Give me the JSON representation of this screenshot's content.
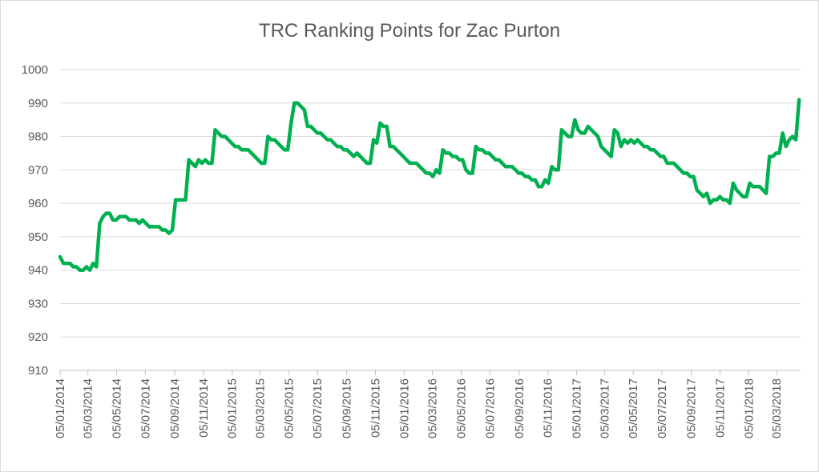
{
  "chart_data": {
    "type": "line",
    "title": "TRC Ranking Points for Zac Purton",
    "xlabel": "",
    "ylabel": "",
    "ylim": [
      910,
      1000
    ],
    "y_ticks": [
      910,
      920,
      930,
      940,
      950,
      960,
      970,
      980,
      990,
      1000
    ],
    "x_tick_labels": [
      "05/01/2014",
      "05/03/2014",
      "05/05/2014",
      "05/07/2014",
      "05/09/2014",
      "05/11/2014",
      "05/01/2015",
      "05/03/2015",
      "05/05/2015",
      "05/07/2015",
      "05/09/2015",
      "05/11/2015",
      "05/01/2016",
      "05/03/2016",
      "05/05/2016",
      "05/07/2016",
      "05/09/2016",
      "05/11/2016",
      "05/01/2017",
      "05/03/2017",
      "05/05/2017",
      "05/07/2017",
      "05/09/2017",
      "05/11/2017",
      "05/01/2018",
      "05/03/2018"
    ],
    "grid": true,
    "legend": "none",
    "line_color": "#00b050",
    "series": [
      {
        "values": [
          [
            "2014-01-05",
            944
          ],
          [
            "2014-01-12",
            942
          ],
          [
            "2014-01-19",
            942
          ],
          [
            "2014-01-26",
            942
          ],
          [
            "2014-02-02",
            941
          ],
          [
            "2014-02-09",
            941
          ],
          [
            "2014-02-16",
            940
          ],
          [
            "2014-02-23",
            940
          ],
          [
            "2014-03-02",
            941
          ],
          [
            "2014-03-09",
            940
          ],
          [
            "2014-03-16",
            942
          ],
          [
            "2014-03-23",
            941
          ],
          [
            "2014-03-30",
            954
          ],
          [
            "2014-04-06",
            956
          ],
          [
            "2014-04-13",
            957
          ],
          [
            "2014-04-20",
            957
          ],
          [
            "2014-04-27",
            955
          ],
          [
            "2014-05-04",
            955
          ],
          [
            "2014-05-11",
            956
          ],
          [
            "2014-05-18",
            956
          ],
          [
            "2014-05-25",
            956
          ],
          [
            "2014-06-01",
            955
          ],
          [
            "2014-06-08",
            955
          ],
          [
            "2014-06-15",
            955
          ],
          [
            "2014-06-22",
            954
          ],
          [
            "2014-06-29",
            955
          ],
          [
            "2014-07-06",
            954
          ],
          [
            "2014-07-13",
            953
          ],
          [
            "2014-07-20",
            953
          ],
          [
            "2014-07-27",
            953
          ],
          [
            "2014-08-03",
            953
          ],
          [
            "2014-08-10",
            952
          ],
          [
            "2014-08-17",
            952
          ],
          [
            "2014-08-24",
            951
          ],
          [
            "2014-08-31",
            952
          ],
          [
            "2014-09-07",
            961
          ],
          [
            "2014-09-14",
            961
          ],
          [
            "2014-09-21",
            961
          ],
          [
            "2014-09-28",
            961
          ],
          [
            "2014-10-05",
            973
          ],
          [
            "2014-10-12",
            972
          ],
          [
            "2014-10-19",
            971
          ],
          [
            "2014-10-26",
            973
          ],
          [
            "2014-11-02",
            972
          ],
          [
            "2014-11-09",
            973
          ],
          [
            "2014-11-16",
            972
          ],
          [
            "2014-11-23",
            972
          ],
          [
            "2014-11-30",
            982
          ],
          [
            "2014-12-07",
            981
          ],
          [
            "2014-12-14",
            980
          ],
          [
            "2014-12-21",
            980
          ],
          [
            "2014-12-28",
            979
          ],
          [
            "2015-01-04",
            978
          ],
          [
            "2015-01-11",
            977
          ],
          [
            "2015-01-18",
            977
          ],
          [
            "2015-01-25",
            976
          ],
          [
            "2015-02-01",
            976
          ],
          [
            "2015-02-08",
            976
          ],
          [
            "2015-02-15",
            975
          ],
          [
            "2015-02-22",
            974
          ],
          [
            "2015-03-01",
            973
          ],
          [
            "2015-03-08",
            972
          ],
          [
            "2015-03-15",
            972
          ],
          [
            "2015-03-22",
            980
          ],
          [
            "2015-03-29",
            979
          ],
          [
            "2015-04-05",
            979
          ],
          [
            "2015-04-12",
            978
          ],
          [
            "2015-04-19",
            977
          ],
          [
            "2015-04-26",
            976
          ],
          [
            "2015-05-03",
            976
          ],
          [
            "2015-05-10",
            984
          ],
          [
            "2015-05-17",
            990
          ],
          [
            "2015-05-24",
            990
          ],
          [
            "2015-05-31",
            989
          ],
          [
            "2015-06-07",
            988
          ],
          [
            "2015-06-14",
            983
          ],
          [
            "2015-06-21",
            983
          ],
          [
            "2015-06-28",
            982
          ],
          [
            "2015-07-05",
            981
          ],
          [
            "2015-07-12",
            981
          ],
          [
            "2015-07-19",
            980
          ],
          [
            "2015-07-26",
            979
          ],
          [
            "2015-08-02",
            979
          ],
          [
            "2015-08-09",
            978
          ],
          [
            "2015-08-16",
            977
          ],
          [
            "2015-08-23",
            977
          ],
          [
            "2015-08-30",
            976
          ],
          [
            "2015-09-06",
            976
          ],
          [
            "2015-09-13",
            975
          ],
          [
            "2015-09-20",
            974
          ],
          [
            "2015-09-27",
            975
          ],
          [
            "2015-10-04",
            974
          ],
          [
            "2015-10-11",
            973
          ],
          [
            "2015-10-18",
            972
          ],
          [
            "2015-10-25",
            972
          ],
          [
            "2015-11-01",
            979
          ],
          [
            "2015-11-08",
            978
          ],
          [
            "2015-11-15",
            984
          ],
          [
            "2015-11-22",
            983
          ],
          [
            "2015-11-29",
            983
          ],
          [
            "2015-12-06",
            977
          ],
          [
            "2015-12-13",
            977
          ],
          [
            "2015-12-20",
            976
          ],
          [
            "2015-12-27",
            975
          ],
          [
            "2016-01-03",
            974
          ],
          [
            "2016-01-10",
            973
          ],
          [
            "2016-01-17",
            972
          ],
          [
            "2016-01-24",
            972
          ],
          [
            "2016-01-31",
            972
          ],
          [
            "2016-02-07",
            971
          ],
          [
            "2016-02-14",
            970
          ],
          [
            "2016-02-21",
            969
          ],
          [
            "2016-02-28",
            969
          ],
          [
            "2016-03-06",
            968
          ],
          [
            "2016-03-13",
            970
          ],
          [
            "2016-03-20",
            969
          ],
          [
            "2016-03-27",
            976
          ],
          [
            "2016-04-03",
            975
          ],
          [
            "2016-04-10",
            975
          ],
          [
            "2016-04-17",
            974
          ],
          [
            "2016-04-24",
            974
          ],
          [
            "2016-05-01",
            973
          ],
          [
            "2016-05-08",
            973
          ],
          [
            "2016-05-15",
            970
          ],
          [
            "2016-05-22",
            969
          ],
          [
            "2016-05-29",
            969
          ],
          [
            "2016-06-05",
            977
          ],
          [
            "2016-06-12",
            976
          ],
          [
            "2016-06-19",
            976
          ],
          [
            "2016-06-26",
            975
          ],
          [
            "2016-07-03",
            975
          ],
          [
            "2016-07-10",
            974
          ],
          [
            "2016-07-17",
            973
          ],
          [
            "2016-07-24",
            973
          ],
          [
            "2016-07-31",
            972
          ],
          [
            "2016-08-07",
            971
          ],
          [
            "2016-08-14",
            971
          ],
          [
            "2016-08-21",
            971
          ],
          [
            "2016-08-28",
            970
          ],
          [
            "2016-09-04",
            969
          ],
          [
            "2016-09-11",
            969
          ],
          [
            "2016-09-18",
            968
          ],
          [
            "2016-09-25",
            968
          ],
          [
            "2016-10-02",
            967
          ],
          [
            "2016-10-09",
            967
          ],
          [
            "2016-10-16",
            965
          ],
          [
            "2016-10-23",
            965
          ],
          [
            "2016-10-30",
            967
          ],
          [
            "2016-11-06",
            966
          ],
          [
            "2016-11-13",
            971
          ],
          [
            "2016-11-20",
            970
          ],
          [
            "2016-11-27",
            970
          ],
          [
            "2016-12-04",
            982
          ],
          [
            "2016-12-11",
            981
          ],
          [
            "2016-12-18",
            980
          ],
          [
            "2016-12-25",
            980
          ],
          [
            "2017-01-01",
            985
          ],
          [
            "2017-01-08",
            982
          ],
          [
            "2017-01-15",
            981
          ],
          [
            "2017-01-22",
            981
          ],
          [
            "2017-01-29",
            983
          ],
          [
            "2017-02-05",
            982
          ],
          [
            "2017-02-12",
            981
          ],
          [
            "2017-02-19",
            980
          ],
          [
            "2017-02-26",
            977
          ],
          [
            "2017-03-05",
            976
          ],
          [
            "2017-03-12",
            975
          ],
          [
            "2017-03-19",
            974
          ],
          [
            "2017-03-26",
            982
          ],
          [
            "2017-04-02",
            981
          ],
          [
            "2017-04-09",
            977
          ],
          [
            "2017-04-16",
            979
          ],
          [
            "2017-04-23",
            978
          ],
          [
            "2017-04-30",
            979
          ],
          [
            "2017-05-07",
            978
          ],
          [
            "2017-05-14",
            979
          ],
          [
            "2017-05-21",
            978
          ],
          [
            "2017-05-28",
            977
          ],
          [
            "2017-06-04",
            977
          ],
          [
            "2017-06-11",
            976
          ],
          [
            "2017-06-18",
            976
          ],
          [
            "2017-06-25",
            975
          ],
          [
            "2017-07-02",
            974
          ],
          [
            "2017-07-09",
            974
          ],
          [
            "2017-07-16",
            972
          ],
          [
            "2017-07-23",
            972
          ],
          [
            "2017-07-30",
            972
          ],
          [
            "2017-08-06",
            971
          ],
          [
            "2017-08-13",
            970
          ],
          [
            "2017-08-20",
            969
          ],
          [
            "2017-08-27",
            969
          ],
          [
            "2017-09-03",
            968
          ],
          [
            "2017-09-10",
            968
          ],
          [
            "2017-09-17",
            964
          ],
          [
            "2017-09-24",
            963
          ],
          [
            "2017-10-01",
            962
          ],
          [
            "2017-10-08",
            963
          ],
          [
            "2017-10-15",
            960
          ],
          [
            "2017-10-22",
            961
          ],
          [
            "2017-10-29",
            961
          ],
          [
            "2017-11-05",
            962
          ],
          [
            "2017-11-12",
            961
          ],
          [
            "2017-11-19",
            961
          ],
          [
            "2017-11-26",
            960
          ],
          [
            "2017-12-03",
            966
          ],
          [
            "2017-12-10",
            964
          ],
          [
            "2017-12-17",
            963
          ],
          [
            "2017-12-24",
            962
          ],
          [
            "2017-12-31",
            962
          ],
          [
            "2018-01-07",
            966
          ],
          [
            "2018-01-14",
            965
          ],
          [
            "2018-01-21",
            965
          ],
          [
            "2018-01-28",
            965
          ],
          [
            "2018-02-04",
            964
          ],
          [
            "2018-02-11",
            963
          ],
          [
            "2018-02-18",
            974
          ],
          [
            "2018-02-25",
            974
          ],
          [
            "2018-03-04",
            975
          ],
          [
            "2018-03-11",
            975
          ],
          [
            "2018-03-18",
            981
          ],
          [
            "2018-03-25",
            977
          ],
          [
            "2018-04-01",
            979
          ],
          [
            "2018-04-08",
            980
          ],
          [
            "2018-04-15",
            979
          ],
          [
            "2018-04-22",
            991
          ]
        ]
      }
    ]
  }
}
